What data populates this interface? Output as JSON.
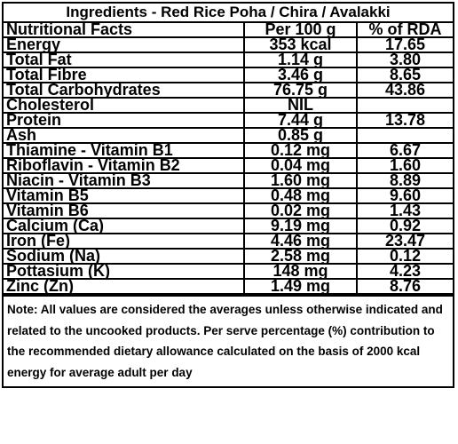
{
  "title": "Ingredients - Red Rice Poha / Chira / Avalakki",
  "header": {
    "name": "Nutritional Facts",
    "per100": "Per 100 g",
    "rda": "% of RDA"
  },
  "rows": [
    {
      "name": "Energy",
      "per100": "353 kcal",
      "rda": "17.65"
    },
    {
      "name": "Total Fat",
      "per100": "1.14 g",
      "rda": "3.80"
    },
    {
      "name": "Total Fibre",
      "per100": "3.46 g",
      "rda": "8.65"
    },
    {
      "name": "Total Carbohydrates",
      "per100": "76.75 g",
      "rda": "43.86"
    },
    {
      "name": "Cholesterol",
      "per100": "NIL",
      "rda": ""
    },
    {
      "name": "Protein",
      "per100": "7.44 g",
      "rda": "13.78"
    },
    {
      "name": "Ash",
      "per100": "0.85 g",
      "rda": ""
    },
    {
      "name": "Thiamine - Vitamin B1",
      "per100": "0.12 mg",
      "rda": "6.67"
    },
    {
      "name": "Riboflavin - Vitamin B2",
      "per100": "0.04 mg",
      "rda": "1.60"
    },
    {
      "name": "Niacin - Vitamin B3",
      "per100": "1.60 mg",
      "rda": "8.89"
    },
    {
      "name": "Vitamin B5",
      "per100": "0.48 mg",
      "rda": "9.60"
    },
    {
      "name": "Vitamin B6",
      "per100": "0.02 mg",
      "rda": "1.43"
    },
    {
      "name": "Calcium (Ca)",
      "per100": "9.19 mg",
      "rda": "0.92"
    },
    {
      "name": "Iron (Fe)",
      "per100": "4.46 mg",
      "rda": "23.47"
    },
    {
      "name": "Sodium (Na)",
      "per100": "2.58 mg",
      "rda": "0.12"
    },
    {
      "name": "Pottasium (K)",
      "per100": "148 mg",
      "rda": "4.23"
    },
    {
      "name": "Zinc (Zn)",
      "per100": "1.49 mg",
      "rda": "8.76"
    }
  ],
  "note": "Note: All values are considered the averages unless otherwise indicated and related to the uncooked products. Per serve percentage (%) contribution to the recommended dietary allowance calculated on the basis of 2000 kcal energy for average adult per day"
}
